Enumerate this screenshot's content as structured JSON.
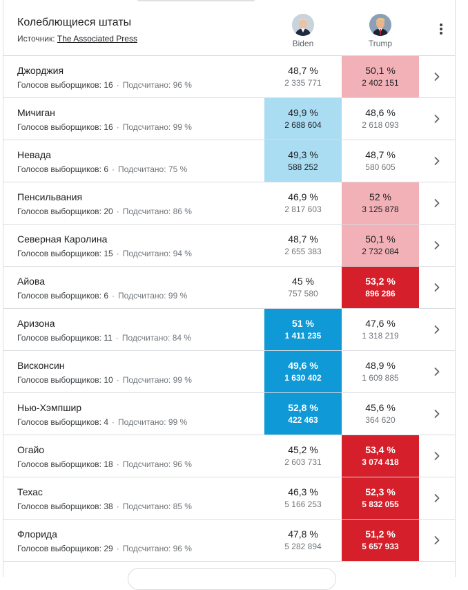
{
  "header": {
    "title": "Колеблющиеся штаты",
    "source_label": "Источник:",
    "source_link": "The Associated Press",
    "candidates": [
      {
        "name": "Biden"
      },
      {
        "name": "Trump"
      }
    ],
    "more_icon": "more-vert-icon"
  },
  "labels": {
    "electors": "Голосов выборщиков:",
    "counted": "Подсчитано:"
  },
  "colors": {
    "light_blue": "#aadcf2",
    "dark_blue": "#0f99d6",
    "light_red": "#f2b1b6",
    "dark_red": "#d51f2a"
  },
  "rows": [
    {
      "state": "Джорджия",
      "electors": "16",
      "counted": "96 %",
      "biden_pct": "48,7 %",
      "biden_votes": "2 335 771",
      "biden_fill": "",
      "trump_pct": "50,1 %",
      "trump_votes": "2 402 151",
      "trump_fill": "light-red"
    },
    {
      "state": "Мичиган",
      "electors": "16",
      "counted": "99 %",
      "biden_pct": "49,9 %",
      "biden_votes": "2 688 604",
      "biden_fill": "light-blue",
      "trump_pct": "48,6 %",
      "trump_votes": "2 618 093",
      "trump_fill": ""
    },
    {
      "state": "Невада",
      "electors": "6",
      "counted": "75 %",
      "biden_pct": "49,3 %",
      "biden_votes": "588 252",
      "biden_fill": "light-blue",
      "trump_pct": "48,7 %",
      "trump_votes": "580 605",
      "trump_fill": ""
    },
    {
      "state": "Пенсильвания",
      "electors": "20",
      "counted": "86 %",
      "biden_pct": "46,9 %",
      "biden_votes": "2 817 603",
      "biden_fill": "",
      "trump_pct": "52 %",
      "trump_votes": "3 125 878",
      "trump_fill": "light-red"
    },
    {
      "state": "Северная Каролина",
      "electors": "15",
      "counted": "94 %",
      "biden_pct": "48,7 %",
      "biden_votes": "2 655 383",
      "biden_fill": "",
      "trump_pct": "50,1 %",
      "trump_votes": "2 732 084",
      "trump_fill": "light-red"
    },
    {
      "state": "Айова",
      "electors": "6",
      "counted": "99 %",
      "biden_pct": "45 %",
      "biden_votes": "757 580",
      "biden_fill": "",
      "trump_pct": "53,2 %",
      "trump_votes": "896 286",
      "trump_fill": "dark-red"
    },
    {
      "state": "Аризона",
      "electors": "11",
      "counted": "84 %",
      "biden_pct": "51 %",
      "biden_votes": "1 411 235",
      "biden_fill": "dark-blue",
      "trump_pct": "47,6 %",
      "trump_votes": "1 318 219",
      "trump_fill": ""
    },
    {
      "state": "Висконсин",
      "electors": "10",
      "counted": "99 %",
      "biden_pct": "49,6 %",
      "biden_votes": "1 630 402",
      "biden_fill": "dark-blue",
      "trump_pct": "48,9 %",
      "trump_votes": "1 609 885",
      "trump_fill": ""
    },
    {
      "state": "Нью-Хэмпшир",
      "electors": "4",
      "counted": "99 %",
      "biden_pct": "52,8 %",
      "biden_votes": "422 463",
      "biden_fill": "dark-blue",
      "trump_pct": "45,6 %",
      "trump_votes": "364 620",
      "trump_fill": ""
    },
    {
      "state": "Огайо",
      "electors": "18",
      "counted": "96 %",
      "biden_pct": "45,2 %",
      "biden_votes": "2 603 731",
      "biden_fill": "",
      "trump_pct": "53,4 %",
      "trump_votes": "3 074 418",
      "trump_fill": "dark-red"
    },
    {
      "state": "Техас",
      "electors": "38",
      "counted": "85 %",
      "biden_pct": "46,3 %",
      "biden_votes": "5 166 253",
      "biden_fill": "",
      "trump_pct": "52,3 %",
      "trump_votes": "5 832 055",
      "trump_fill": "dark-red"
    },
    {
      "state": "Флорида",
      "electors": "29",
      "counted": "96 %",
      "biden_pct": "47,8 %",
      "biden_votes": "5 282 894",
      "biden_fill": "",
      "trump_pct": "51,2 %",
      "trump_votes": "5 657 933",
      "trump_fill": "dark-red"
    }
  ]
}
